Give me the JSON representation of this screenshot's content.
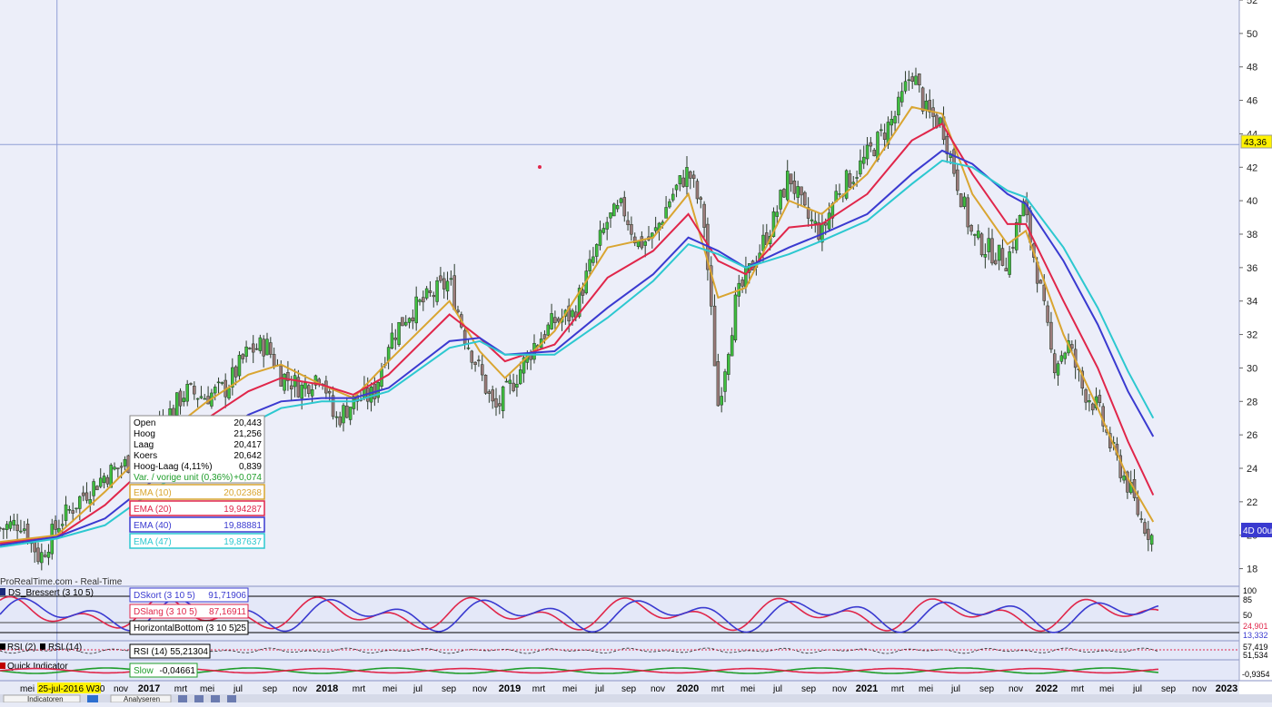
{
  "source_label": "ProRealTime.com - Real-Time",
  "price_marker": {
    "value": "43,36"
  },
  "last_marker": {
    "value": "4D 00u"
  },
  "crosshair_date": "25-jul-2016 W30",
  "ohlc_box": {
    "rows": [
      {
        "label": "Open",
        "value": "20,443"
      },
      {
        "label": "Hoog",
        "value": "21,256"
      },
      {
        "label": "Laag",
        "value": "20,417"
      },
      {
        "label": "Koers",
        "value": "20,642"
      },
      {
        "label": "Hoog-Laag (4,11%)",
        "value": "0,839"
      },
      {
        "label": "Var. / vorige unit (0,36%)",
        "value": "+0,074",
        "color": "#1f9d2a"
      }
    ]
  },
  "ema_legend": [
    {
      "label": "EMA (10)",
      "value": "20,02368",
      "color": "#d9a531"
    },
    {
      "label": "EMA (20)",
      "value": "19,94287",
      "color": "#e0264a"
    },
    {
      "label": "EMA (40)",
      "value": "19,88881",
      "color": "#3a3ad0"
    },
    {
      "label": "EMA (47)",
      "value": "19,87637",
      "color": "#2cc8d0"
    }
  ],
  "panels": {
    "ds_bressert": {
      "title": "DS_Bressert (3 10 5)",
      "legend": [
        {
          "label": "DSkort (3 10 5)",
          "value": "91,71906",
          "color": "#3a3ad0"
        },
        {
          "label": "DSlang (3 10 5)",
          "value": "87,16911",
          "color": "#e0264a"
        },
        {
          "label": "HorizontalBottom (3 10 5)",
          "value": "25",
          "color": "#000000"
        }
      ],
      "axis_labels": [
        "100",
        "85",
        "50",
        "24,901",
        "13,332"
      ]
    },
    "rsi": {
      "titles": [
        "RSI (2)",
        "RSI (14)"
      ],
      "legend": {
        "label": "RSI (14)",
        "value": "55,21304"
      },
      "axis_labels": [
        "57,419",
        "51,534"
      ]
    },
    "quick": {
      "title": "Quick Indicator",
      "legend": {
        "label": "Slow",
        "value": "-0,04661"
      },
      "axis_labels": [
        "-0,9354"
      ]
    }
  },
  "x_axis_ticks": [
    {
      "label": "mei",
      "bold": false
    },
    {
      "label": "25-jul-2016 W30",
      "bold": false
    },
    {
      "label": "nov",
      "bold": false
    },
    {
      "label": "2017",
      "bold": true
    },
    {
      "label": "mrt",
      "bold": false
    },
    {
      "label": "mei",
      "bold": false
    },
    {
      "label": "jul",
      "bold": false
    },
    {
      "label": "sep",
      "bold": false
    },
    {
      "label": "nov",
      "bold": false
    },
    {
      "label": "2018",
      "bold": true
    },
    {
      "label": "mrt",
      "bold": false
    },
    {
      "label": "mei",
      "bold": false
    },
    {
      "label": "jul",
      "bold": false
    },
    {
      "label": "sep",
      "bold": false
    },
    {
      "label": "nov",
      "bold": false
    },
    {
      "label": "2019",
      "bold": true
    },
    {
      "label": "mrt",
      "bold": false
    },
    {
      "label": "mei",
      "bold": false
    },
    {
      "label": "jul",
      "bold": false
    },
    {
      "label": "sep",
      "bold": false
    },
    {
      "label": "nov",
      "bold": false
    },
    {
      "label": "2020",
      "bold": true
    },
    {
      "label": "mrt",
      "bold": false
    },
    {
      "label": "mei",
      "bold": false
    },
    {
      "label": "jul",
      "bold": false
    },
    {
      "label": "sep",
      "bold": false
    },
    {
      "label": "nov",
      "bold": false
    },
    {
      "label": "2021",
      "bold": true
    },
    {
      "label": "mrt",
      "bold": false
    },
    {
      "label": "mei",
      "bold": false
    },
    {
      "label": "jul",
      "bold": false
    },
    {
      "label": "sep",
      "bold": false
    },
    {
      "label": "nov",
      "bold": false
    },
    {
      "label": "2022",
      "bold": true
    },
    {
      "label": "mrt",
      "bold": false
    },
    {
      "label": "mei",
      "bold": false
    },
    {
      "label": "jul",
      "bold": false
    },
    {
      "label": "sep",
      "bold": false
    },
    {
      "label": "nov",
      "bold": false
    },
    {
      "label": "2023",
      "bold": true
    }
  ],
  "toolbar": {
    "indicators_label": "Indicatoren",
    "analysis_label": "Analyseren"
  },
  "chart_data": {
    "type": "line",
    "title": "",
    "xlabel": "",
    "ylabel": "",
    "ylim": [
      17,
      52
    ],
    "y_ticks": [
      18,
      20,
      22,
      24,
      26,
      28,
      30,
      32,
      34,
      36,
      38,
      40,
      42,
      44,
      46,
      48,
      50,
      52
    ],
    "grid": false,
    "x_range": [
      "2016-04-01",
      "2023-02-01"
    ],
    "crosshair_y": 43.36,
    "candles_close": [
      {
        "x": "2016-04-01",
        "y": 20.4
      },
      {
        "x": "2016-05-15",
        "y": 20.8
      },
      {
        "x": "2016-06-20",
        "y": 18.6
      },
      {
        "x": "2016-07-25",
        "y": 20.6
      },
      {
        "x": "2016-09-15",
        "y": 22.4
      },
      {
        "x": "2016-10-30",
        "y": 23.6
      },
      {
        "x": "2016-12-20",
        "y": 24.4
      },
      {
        "x": "2017-02-01",
        "y": 26.2
      },
      {
        "x": "2017-03-15",
        "y": 27.5
      },
      {
        "x": "2017-04-10",
        "y": 28.6
      },
      {
        "x": "2017-05-20",
        "y": 28.3
      },
      {
        "x": "2017-07-01",
        "y": 28.8
      },
      {
        "x": "2017-08-15",
        "y": 31.0
      },
      {
        "x": "2017-09-20",
        "y": 31.4
      },
      {
        "x": "2017-10-20",
        "y": 29.6
      },
      {
        "x": "2017-12-01",
        "y": 28.8
      },
      {
        "x": "2018-01-10",
        "y": 29.8
      },
      {
        "x": "2018-02-05",
        "y": 26.8
      },
      {
        "x": "2018-03-15",
        "y": 28.0
      },
      {
        "x": "2018-04-25",
        "y": 28.4
      },
      {
        "x": "2018-05-25",
        "y": 31.6
      },
      {
        "x": "2018-07-01",
        "y": 33.2
      },
      {
        "x": "2018-08-15",
        "y": 34.2
      },
      {
        "x": "2018-09-25",
        "y": 35.2
      },
      {
        "x": "2018-10-25",
        "y": 32.0
      },
      {
        "x": "2018-11-25",
        "y": 29.8
      },
      {
        "x": "2018-12-25",
        "y": 27.4
      },
      {
        "x": "2019-02-01",
        "y": 29.2
      },
      {
        "x": "2019-03-15",
        "y": 31.4
      },
      {
        "x": "2019-04-25",
        "y": 32.8
      },
      {
        "x": "2019-06-01",
        "y": 33.2
      },
      {
        "x": "2019-07-10",
        "y": 36.4
      },
      {
        "x": "2019-08-10",
        "y": 38.8
      },
      {
        "x": "2019-09-10",
        "y": 39.6
      },
      {
        "x": "2019-10-10",
        "y": 37.4
      },
      {
        "x": "2019-11-10",
        "y": 37.8
      },
      {
        "x": "2019-12-15",
        "y": 40.2
      },
      {
        "x": "2020-01-20",
        "y": 41.8
      },
      {
        "x": "2020-02-20",
        "y": 39.0
      },
      {
        "x": "2020-03-20",
        "y": 27.8
      },
      {
        "x": "2020-04-25",
        "y": 34.0
      },
      {
        "x": "2020-06-01",
        "y": 36.4
      },
      {
        "x": "2020-07-10",
        "y": 38.8
      },
      {
        "x": "2020-08-10",
        "y": 41.6
      },
      {
        "x": "2020-09-10",
        "y": 39.2
      },
      {
        "x": "2020-10-15",
        "y": 38.0
      },
      {
        "x": "2020-11-15",
        "y": 40.6
      },
      {
        "x": "2020-12-20",
        "y": 41.6
      },
      {
        "x": "2021-02-01",
        "y": 43.4
      },
      {
        "x": "2021-03-15",
        "y": 45.2
      },
      {
        "x": "2021-04-15",
        "y": 47.8
      },
      {
        "x": "2021-05-15",
        "y": 45.2
      },
      {
        "x": "2021-06-15",
        "y": 44.6
      },
      {
        "x": "2021-07-15",
        "y": 41.2
      },
      {
        "x": "2021-08-15",
        "y": 37.8
      },
      {
        "x": "2021-09-20",
        "y": 37.0
      },
      {
        "x": "2021-10-25",
        "y": 36.4
      },
      {
        "x": "2021-11-25",
        "y": 39.8
      },
      {
        "x": "2021-12-25",
        "y": 35.6
      },
      {
        "x": "2022-01-25",
        "y": 30.2
      },
      {
        "x": "2022-02-25",
        "y": 31.4
      },
      {
        "x": "2022-03-25",
        "y": 28.8
      },
      {
        "x": "2022-04-25",
        "y": 27.6
      },
      {
        "x": "2022-05-25",
        "y": 25.0
      },
      {
        "x": "2022-06-25",
        "y": 23.0
      },
      {
        "x": "2022-07-20",
        "y": 21.0
      },
      {
        "x": "2022-08-15",
        "y": 19.8
      }
    ],
    "series": [
      {
        "name": "EMA (10)",
        "color": "#d9a531",
        "points": [
          {
            "x": "2016-04-01",
            "y": 19.6
          },
          {
            "x": "2016-07-25",
            "y": 20.0
          },
          {
            "x": "2016-10-30",
            "y": 22.6
          },
          {
            "x": "2017-02-01",
            "y": 25.4
          },
          {
            "x": "2017-05-20",
            "y": 27.9
          },
          {
            "x": "2017-08-15",
            "y": 29.6
          },
          {
            "x": "2017-10-20",
            "y": 30.2
          },
          {
            "x": "2018-01-10",
            "y": 29.0
          },
          {
            "x": "2018-03-15",
            "y": 28.2
          },
          {
            "x": "2018-05-25",
            "y": 30.4
          },
          {
            "x": "2018-09-25",
            "y": 34.0
          },
          {
            "x": "2018-11-25",
            "y": 31.0
          },
          {
            "x": "2019-01-15",
            "y": 29.4
          },
          {
            "x": "2019-04-25",
            "y": 32.2
          },
          {
            "x": "2019-08-10",
            "y": 37.2
          },
          {
            "x": "2019-11-10",
            "y": 37.8
          },
          {
            "x": "2020-01-20",
            "y": 40.4
          },
          {
            "x": "2020-03-20",
            "y": 34.2
          },
          {
            "x": "2020-05-15",
            "y": 34.8
          },
          {
            "x": "2020-08-10",
            "y": 40.0
          },
          {
            "x": "2020-10-15",
            "y": 39.2
          },
          {
            "x": "2021-01-15",
            "y": 41.6
          },
          {
            "x": "2021-04-15",
            "y": 45.6
          },
          {
            "x": "2021-06-15",
            "y": 45.2
          },
          {
            "x": "2021-08-15",
            "y": 40.4
          },
          {
            "x": "2021-10-25",
            "y": 37.4
          },
          {
            "x": "2021-12-01",
            "y": 38.2
          },
          {
            "x": "2022-02-15",
            "y": 32.0
          },
          {
            "x": "2022-04-25",
            "y": 27.6
          },
          {
            "x": "2022-06-25",
            "y": 23.4
          },
          {
            "x": "2022-08-15",
            "y": 20.8
          }
        ]
      },
      {
        "name": "EMA (20)",
        "color": "#e0264a",
        "points": [
          {
            "x": "2016-04-01",
            "y": 19.5
          },
          {
            "x": "2016-07-25",
            "y": 19.9
          },
          {
            "x": "2016-10-30",
            "y": 21.8
          },
          {
            "x": "2017-02-01",
            "y": 24.4
          },
          {
            "x": "2017-05-20",
            "y": 26.9
          },
          {
            "x": "2017-08-15",
            "y": 28.6
          },
          {
            "x": "2017-10-20",
            "y": 29.4
          },
          {
            "x": "2018-01-10",
            "y": 29.0
          },
          {
            "x": "2018-03-15",
            "y": 28.4
          },
          {
            "x": "2018-05-25",
            "y": 29.6
          },
          {
            "x": "2018-09-25",
            "y": 33.2
          },
          {
            "x": "2018-11-25",
            "y": 31.8
          },
          {
            "x": "2019-01-15",
            "y": 30.4
          },
          {
            "x": "2019-04-25",
            "y": 31.4
          },
          {
            "x": "2019-08-10",
            "y": 35.4
          },
          {
            "x": "2019-11-10",
            "y": 37.0
          },
          {
            "x": "2020-01-20",
            "y": 39.2
          },
          {
            "x": "2020-03-20",
            "y": 36.4
          },
          {
            "x": "2020-05-15",
            "y": 35.6
          },
          {
            "x": "2020-08-10",
            "y": 38.4
          },
          {
            "x": "2020-10-15",
            "y": 38.6
          },
          {
            "x": "2021-01-15",
            "y": 40.4
          },
          {
            "x": "2021-04-15",
            "y": 43.6
          },
          {
            "x": "2021-06-15",
            "y": 44.6
          },
          {
            "x": "2021-08-15",
            "y": 41.6
          },
          {
            "x": "2021-10-25",
            "y": 38.6
          },
          {
            "x": "2021-12-01",
            "y": 38.6
          },
          {
            "x": "2022-02-15",
            "y": 34.0
          },
          {
            "x": "2022-04-25",
            "y": 30.0
          },
          {
            "x": "2022-06-25",
            "y": 25.6
          },
          {
            "x": "2022-08-15",
            "y": 22.4
          }
        ]
      },
      {
        "name": "EMA (40)",
        "color": "#3a3ad0",
        "points": [
          {
            "x": "2016-04-01",
            "y": 19.4
          },
          {
            "x": "2016-07-25",
            "y": 19.9
          },
          {
            "x": "2016-10-30",
            "y": 21.0
          },
          {
            "x": "2017-02-01",
            "y": 23.2
          },
          {
            "x": "2017-05-20",
            "y": 25.4
          },
          {
            "x": "2017-08-15",
            "y": 27.2
          },
          {
            "x": "2017-10-20",
            "y": 28.0
          },
          {
            "x": "2018-01-10",
            "y": 28.2
          },
          {
            "x": "2018-03-15",
            "y": 28.2
          },
          {
            "x": "2018-05-25",
            "y": 28.8
          },
          {
            "x": "2018-09-25",
            "y": 31.6
          },
          {
            "x": "2018-11-25",
            "y": 31.8
          },
          {
            "x": "2019-01-15",
            "y": 30.8
          },
          {
            "x": "2019-04-25",
            "y": 31.0
          },
          {
            "x": "2019-08-10",
            "y": 33.6
          },
          {
            "x": "2019-11-10",
            "y": 35.6
          },
          {
            "x": "2020-01-20",
            "y": 37.8
          },
          {
            "x": "2020-03-20",
            "y": 37.0
          },
          {
            "x": "2020-05-15",
            "y": 36.0
          },
          {
            "x": "2020-08-10",
            "y": 37.2
          },
          {
            "x": "2020-10-15",
            "y": 38.0
          },
          {
            "x": "2021-01-15",
            "y": 39.2
          },
          {
            "x": "2021-04-15",
            "y": 41.6
          },
          {
            "x": "2021-06-15",
            "y": 43.0
          },
          {
            "x": "2021-08-15",
            "y": 42.2
          },
          {
            "x": "2021-10-25",
            "y": 40.4
          },
          {
            "x": "2021-12-01",
            "y": 39.8
          },
          {
            "x": "2022-02-15",
            "y": 36.4
          },
          {
            "x": "2022-04-25",
            "y": 32.6
          },
          {
            "x": "2022-06-25",
            "y": 28.6
          },
          {
            "x": "2022-08-15",
            "y": 25.9
          }
        ]
      },
      {
        "name": "EMA (47)",
        "color": "#2cc8d0",
        "points": [
          {
            "x": "2016-04-01",
            "y": 19.3
          },
          {
            "x": "2016-07-25",
            "y": 19.8
          },
          {
            "x": "2016-10-30",
            "y": 20.6
          },
          {
            "x": "2017-02-01",
            "y": 22.6
          },
          {
            "x": "2017-05-20",
            "y": 24.8
          },
          {
            "x": "2017-08-15",
            "y": 26.6
          },
          {
            "x": "2017-10-20",
            "y": 27.6
          },
          {
            "x": "2018-01-10",
            "y": 28.0
          },
          {
            "x": "2018-03-15",
            "y": 28.0
          },
          {
            "x": "2018-05-25",
            "y": 28.6
          },
          {
            "x": "2018-09-25",
            "y": 31.2
          },
          {
            "x": "2018-11-25",
            "y": 31.6
          },
          {
            "x": "2019-01-15",
            "y": 30.8
          },
          {
            "x": "2019-04-25",
            "y": 30.8
          },
          {
            "x": "2019-08-10",
            "y": 33.0
          },
          {
            "x": "2019-11-10",
            "y": 35.2
          },
          {
            "x": "2020-01-20",
            "y": 37.4
          },
          {
            "x": "2020-03-20",
            "y": 36.8
          },
          {
            "x": "2020-05-15",
            "y": 36.0
          },
          {
            "x": "2020-08-10",
            "y": 36.8
          },
          {
            "x": "2020-10-15",
            "y": 37.6
          },
          {
            "x": "2021-01-15",
            "y": 38.8
          },
          {
            "x": "2021-04-15",
            "y": 41.0
          },
          {
            "x": "2021-06-15",
            "y": 42.4
          },
          {
            "x": "2021-08-15",
            "y": 42.0
          },
          {
            "x": "2021-10-25",
            "y": 40.6
          },
          {
            "x": "2021-12-01",
            "y": 40.2
          },
          {
            "x": "2022-02-15",
            "y": 37.2
          },
          {
            "x": "2022-04-25",
            "y": 33.6
          },
          {
            "x": "2022-06-25",
            "y": 29.8
          },
          {
            "x": "2022-08-15",
            "y": 27.0
          }
        ]
      }
    ]
  }
}
